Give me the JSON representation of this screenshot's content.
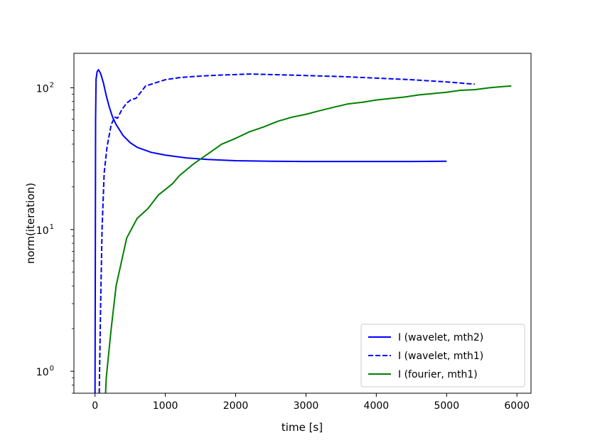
{
  "chart_data": {
    "type": "line",
    "title": "",
    "xlabel": "time [s]",
    "ylabel": "norm(iteration)",
    "xscale": "linear",
    "yscale": "log",
    "xlim": [
      -300,
      6200
    ],
    "ylim": [
      0.7,
      175
    ],
    "xticks": [
      0,
      1000,
      2000,
      3000,
      4000,
      5000,
      6000
    ],
    "yticks": [
      {
        "value": 1,
        "base": "10",
        "exp": "0"
      },
      {
        "value": 10,
        "base": "10",
        "exp": "1"
      },
      {
        "value": 100,
        "base": "10",
        "exp": "2"
      }
    ],
    "grid": false,
    "legend_position": "lower right",
    "series": [
      {
        "name": "I (wavelet, mth2)",
        "color": "#0000ff",
        "style": "solid",
        "points": [
          [
            0,
            0.7
          ],
          [
            4,
            5
          ],
          [
            8,
            60
          ],
          [
            15,
            115
          ],
          [
            30,
            130
          ],
          [
            50,
            134
          ],
          [
            80,
            126
          ],
          [
            120,
            108
          ],
          [
            160,
            88
          ],
          [
            200,
            74
          ],
          [
            250,
            62
          ],
          [
            300,
            55
          ],
          [
            400,
            46
          ],
          [
            500,
            41
          ],
          [
            600,
            38
          ],
          [
            800,
            35
          ],
          [
            1000,
            33.5
          ],
          [
            1300,
            32
          ],
          [
            1600,
            31.2
          ],
          [
            2000,
            30.6
          ],
          [
            2500,
            30.3
          ],
          [
            3000,
            30.2
          ],
          [
            3500,
            30.2
          ],
          [
            4000,
            30.2
          ],
          [
            4500,
            30.2
          ],
          [
            5000,
            30.3
          ]
        ]
      },
      {
        "name": "I (wavelet, mth1)",
        "color": "#0000ff",
        "style": "dashed",
        "points": [
          [
            60,
            0.7
          ],
          [
            80,
            3
          ],
          [
            100,
            10
          ],
          [
            130,
            25
          ],
          [
            170,
            38
          ],
          [
            230,
            55
          ],
          [
            280,
            62
          ],
          [
            320,
            61
          ],
          [
            380,
            70
          ],
          [
            450,
            78
          ],
          [
            520,
            83
          ],
          [
            580,
            84
          ],
          [
            650,
            93
          ],
          [
            720,
            103
          ],
          [
            800,
            106
          ],
          [
            900,
            110
          ],
          [
            1000,
            114
          ],
          [
            1200,
            118
          ],
          [
            1500,
            121
          ],
          [
            1800,
            123
          ],
          [
            2000,
            124
          ],
          [
            2200,
            125
          ],
          [
            2500,
            124
          ],
          [
            3000,
            122
          ],
          [
            3500,
            120
          ],
          [
            4000,
            117
          ],
          [
            4500,
            114
          ],
          [
            5000,
            110
          ],
          [
            5400,
            106
          ]
        ]
      },
      {
        "name": "I (fourier, mth1)",
        "color": "#008000",
        "style": "solid",
        "points": [
          [
            150,
            0.7
          ],
          [
            160,
            0.9
          ],
          [
            230,
            2
          ],
          [
            300,
            4
          ],
          [
            450,
            8.7
          ],
          [
            600,
            12
          ],
          [
            750,
            14
          ],
          [
            900,
            17.5
          ],
          [
            1100,
            21
          ],
          [
            1200,
            24
          ],
          [
            1400,
            29
          ],
          [
            1600,
            34
          ],
          [
            1800,
            40
          ],
          [
            2000,
            44
          ],
          [
            2200,
            49
          ],
          [
            2400,
            53
          ],
          [
            2600,
            58
          ],
          [
            2800,
            62
          ],
          [
            3000,
            65
          ],
          [
            3200,
            69
          ],
          [
            3400,
            73
          ],
          [
            3600,
            77
          ],
          [
            3800,
            79
          ],
          [
            4000,
            82
          ],
          [
            4200,
            84
          ],
          [
            4400,
            86
          ],
          [
            4600,
            89
          ],
          [
            4800,
            91
          ],
          [
            5000,
            93
          ],
          [
            5200,
            96
          ],
          [
            5400,
            97
          ],
          [
            5600,
            100
          ],
          [
            5800,
            102
          ],
          [
            5920,
            103
          ]
        ]
      }
    ]
  }
}
